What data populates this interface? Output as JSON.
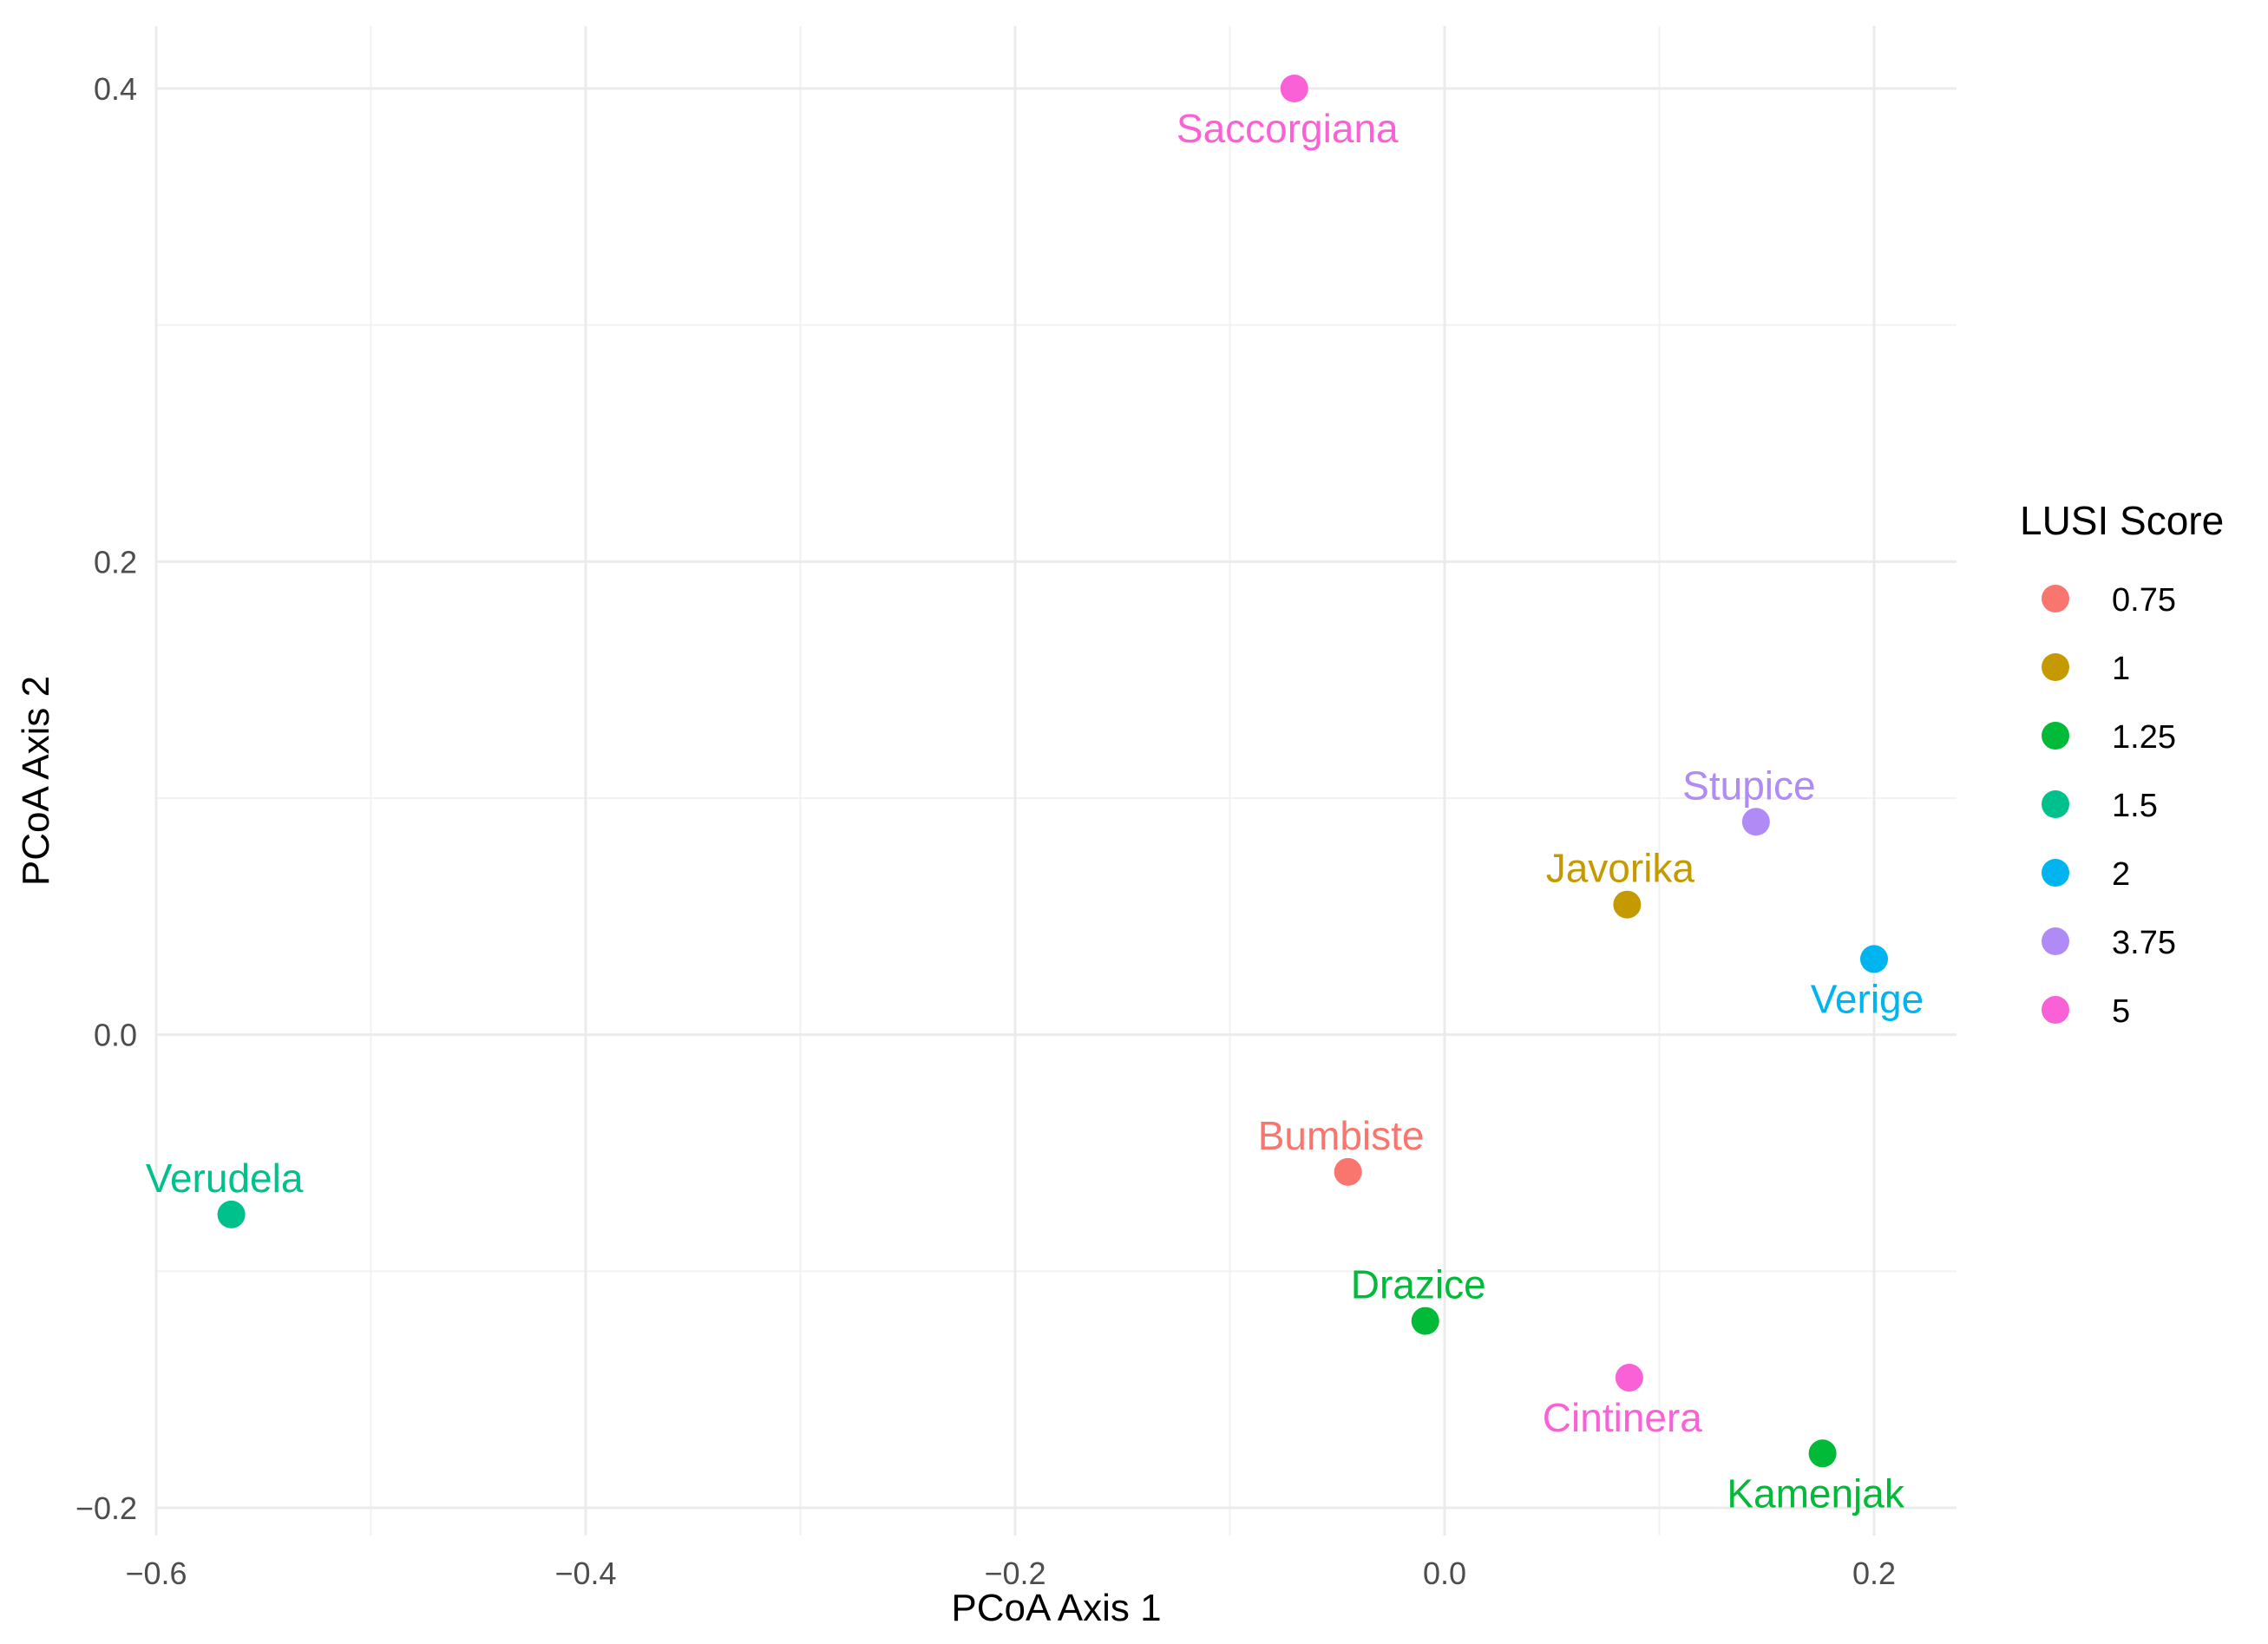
{
  "chart_data": {
    "type": "scatter",
    "title": "",
    "xlabel": "PCoA Axis 1",
    "ylabel": "PCoA Axis 2",
    "xlim": [
      -0.6,
      0.24
    ],
    "ylim": [
      -0.2,
      0.43
    ],
    "x_ticks": [
      -0.6,
      -0.4,
      -0.2,
      0.0,
      0.2
    ],
    "x_tick_labels": [
      "−0.6",
      "−0.4",
      "−0.2",
      "0.0",
      "0.2"
    ],
    "y_ticks": [
      -0.2,
      0.0,
      0.2,
      0.4
    ],
    "y_tick_labels": [
      "−0.2",
      "0.0",
      "0.2",
      "0.4"
    ],
    "grid": true,
    "legend": {
      "title": "LUSI Score",
      "placement": "right",
      "entries": [
        {
          "label": "0.75",
          "color": "#F8766D"
        },
        {
          "label": "1",
          "color": "#C49A00"
        },
        {
          "label": "1.25",
          "color": "#00BA38"
        },
        {
          "label": "1.5",
          "color": "#00C08B"
        },
        {
          "label": "2",
          "color": "#00B4EF"
        },
        {
          "label": "3.75",
          "color": "#B08AF5"
        },
        {
          "label": "5",
          "color": "#FB61D7"
        }
      ]
    },
    "points": [
      {
        "name": "Saccorgiana",
        "x": -0.07,
        "y": 0.4,
        "lusi": "5",
        "label_pos": "below"
      },
      {
        "name": "Stupice",
        "x": 0.145,
        "y": 0.09,
        "lusi": "3.75",
        "label_pos": "above"
      },
      {
        "name": "Javorika",
        "x": 0.085,
        "y": 0.055,
        "lusi": "1",
        "label_pos": "above"
      },
      {
        "name": "Verige",
        "x": 0.2,
        "y": 0.032,
        "lusi": "2",
        "label_pos": "below"
      },
      {
        "name": "Bumbiste",
        "x": -0.045,
        "y": -0.058,
        "lusi": "0.75",
        "label_pos": "above"
      },
      {
        "name": "Verudela",
        "x": -0.565,
        "y": -0.076,
        "lusi": "1.5",
        "label_pos": "above"
      },
      {
        "name": "Drazice",
        "x": -0.009,
        "y": -0.121,
        "lusi": "1.25",
        "label_pos": "above"
      },
      {
        "name": "Cintinera",
        "x": 0.086,
        "y": -0.145,
        "lusi": "5",
        "label_pos": "below"
      },
      {
        "name": "Kamenjak",
        "x": 0.176,
        "y": -0.177,
        "lusi": "1.25",
        "label_pos": "below"
      }
    ]
  }
}
